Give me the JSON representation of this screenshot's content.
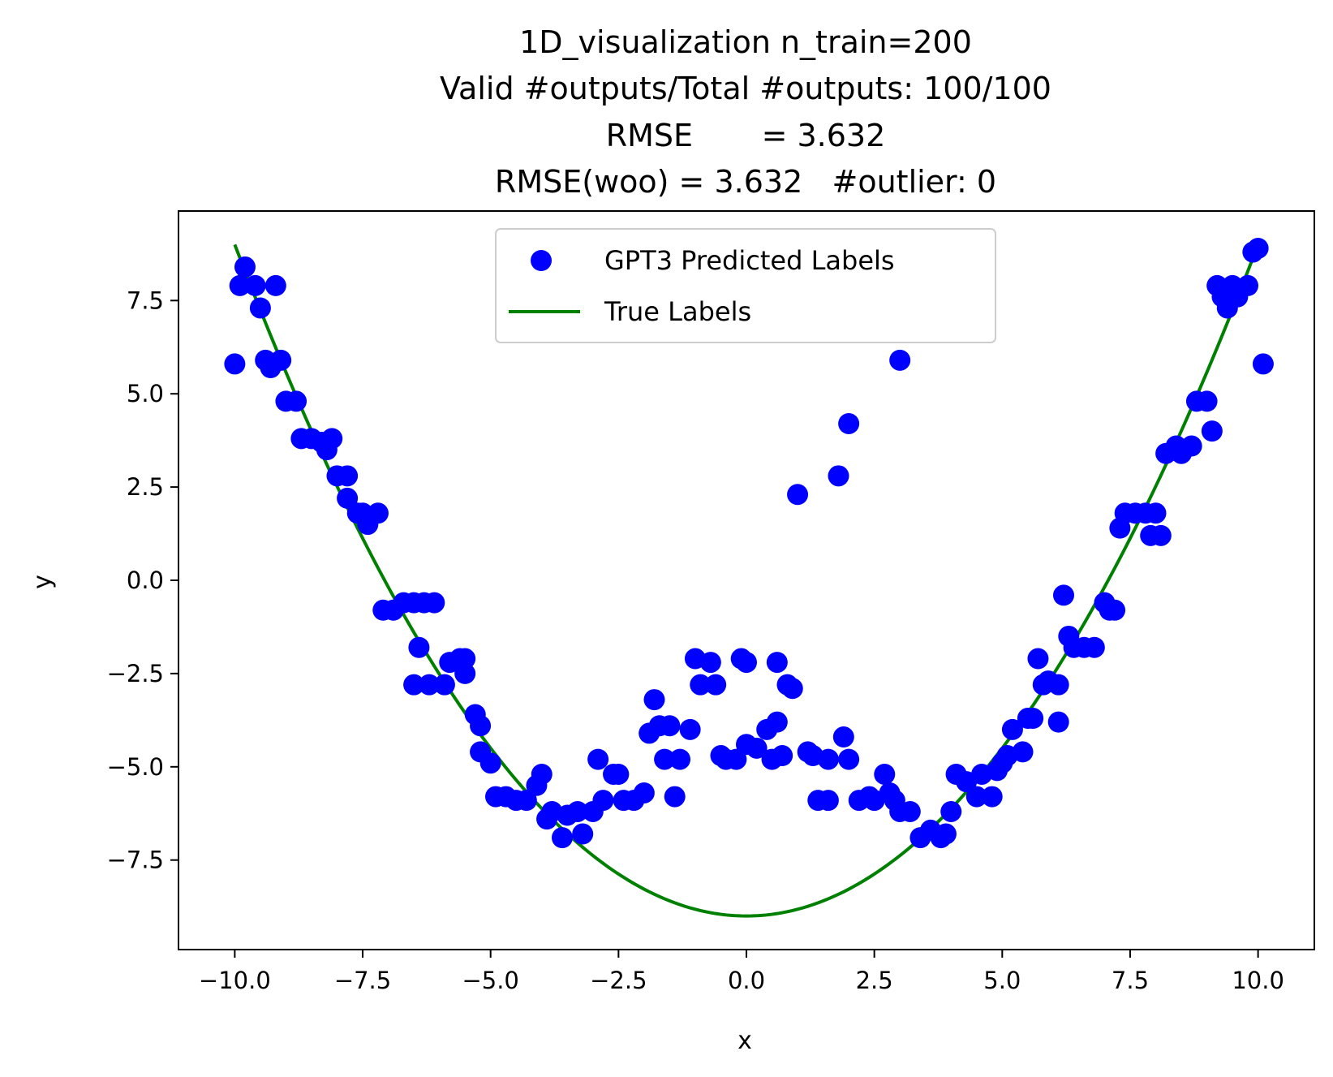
{
  "chart_data": {
    "type": "scatter",
    "title_lines": [
      "1D_visualization  n_train=200",
      "Valid #outputs/Total #outputs: 100/100",
      "RMSE       = 3.632",
      "RMSE(woo) = 3.632   #outlier: 0"
    ],
    "xlabel": "x",
    "ylabel": "y",
    "xlim": [
      -11.1,
      11.1
    ],
    "ylim": [
      -9.9,
      9.9
    ],
    "xticks": [
      -10,
      -7.5,
      -5,
      -2.5,
      0,
      2.5,
      5,
      7.5,
      10
    ],
    "xtick_labels": [
      "−10.0",
      "−7.5",
      "−5.0",
      "−2.5",
      "0.0",
      "2.5",
      "5.0",
      "7.5",
      "10.0"
    ],
    "yticks": [
      -7.5,
      -5,
      -2.5,
      0,
      2.5,
      5,
      7.5
    ],
    "ytick_labels": [
      "−7.5",
      "−5.0",
      "−2.5",
      "0.0",
      "2.5",
      "5.0",
      "7.5"
    ],
    "grid": false,
    "legend": {
      "placement": "top-center",
      "entries": [
        "GPT3 Predicted Labels",
        "True Labels"
      ]
    },
    "colors": {
      "predicted": "#0000ff",
      "true": "#008000"
    },
    "true_curve": {
      "name": "True Labels",
      "function": "y = 0.18 * x^2 - 9",
      "x_range": [
        -10,
        10
      ]
    },
    "series": [
      {
        "name": "GPT3 Predicted Labels",
        "points": [
          [
            -10.0,
            5.8
          ],
          [
            -9.9,
            7.9
          ],
          [
            -9.8,
            8.4
          ],
          [
            -9.6,
            7.9
          ],
          [
            -9.5,
            7.3
          ],
          [
            -9.4,
            5.9
          ],
          [
            -9.3,
            5.7
          ],
          [
            -9.2,
            7.9
          ],
          [
            -9.1,
            5.9
          ],
          [
            -9.0,
            4.8
          ],
          [
            -8.8,
            4.8
          ],
          [
            -8.7,
            3.8
          ],
          [
            -8.5,
            3.8
          ],
          [
            -8.3,
            3.7
          ],
          [
            -8.2,
            3.5
          ],
          [
            -8.1,
            3.8
          ],
          [
            -8.0,
            2.8
          ],
          [
            -7.8,
            2.8
          ],
          [
            -7.8,
            2.2
          ],
          [
            -7.6,
            1.8
          ],
          [
            -7.5,
            1.8
          ],
          [
            -7.4,
            1.5
          ],
          [
            -7.2,
            1.8
          ],
          [
            -7.1,
            -0.8
          ],
          [
            -6.9,
            -0.8
          ],
          [
            -6.7,
            -0.6
          ],
          [
            -6.5,
            -0.6
          ],
          [
            -6.3,
            -0.6
          ],
          [
            -6.1,
            -0.6
          ],
          [
            -6.4,
            -1.8
          ],
          [
            -6.5,
            -2.8
          ],
          [
            -6.2,
            -2.8
          ],
          [
            -5.9,
            -2.8
          ],
          [
            -5.8,
            -2.2
          ],
          [
            -5.6,
            -2.1
          ],
          [
            -5.5,
            -2.1
          ],
          [
            -5.5,
            -2.5
          ],
          [
            -5.3,
            -3.6
          ],
          [
            -5.2,
            -3.9
          ],
          [
            -5.2,
            -4.6
          ],
          [
            -5.0,
            -4.9
          ],
          [
            -4.9,
            -5.8
          ],
          [
            -4.7,
            -5.8
          ],
          [
            -4.5,
            -5.9
          ],
          [
            -4.3,
            -5.9
          ],
          [
            -4.1,
            -5.5
          ],
          [
            -4.0,
            -5.2
          ],
          [
            -3.9,
            -6.4
          ],
          [
            -3.8,
            -6.2
          ],
          [
            -3.6,
            -6.9
          ],
          [
            -3.5,
            -6.3
          ],
          [
            -3.3,
            -6.2
          ],
          [
            -3.2,
            -6.8
          ],
          [
            -3.0,
            -6.2
          ],
          [
            -2.9,
            -4.8
          ],
          [
            -2.8,
            -5.9
          ],
          [
            -2.6,
            -5.2
          ],
          [
            -2.5,
            -5.2
          ],
          [
            -2.4,
            -5.9
          ],
          [
            -2.2,
            -5.9
          ],
          [
            -2.0,
            -5.7
          ],
          [
            -1.9,
            -4.1
          ],
          [
            -1.8,
            -3.2
          ],
          [
            -1.7,
            -3.9
          ],
          [
            -1.6,
            -4.8
          ],
          [
            -1.5,
            -3.9
          ],
          [
            -1.4,
            -5.8
          ],
          [
            -1.3,
            -4.8
          ],
          [
            -1.1,
            -4.0
          ],
          [
            -1.0,
            -2.1
          ],
          [
            -0.9,
            -2.8
          ],
          [
            -0.7,
            -2.2
          ],
          [
            -0.6,
            -2.8
          ],
          [
            -0.5,
            -4.7
          ],
          [
            -0.4,
            -4.8
          ],
          [
            -0.2,
            -4.8
          ],
          [
            -0.1,
            -2.1
          ],
          [
            0.0,
            -2.2
          ],
          [
            0.0,
            -4.4
          ],
          [
            0.2,
            -4.5
          ],
          [
            0.4,
            -4.0
          ],
          [
            0.5,
            -4.8
          ],
          [
            0.6,
            -3.8
          ],
          [
            0.7,
            -4.7
          ],
          [
            0.6,
            -2.2
          ],
          [
            0.8,
            -2.8
          ],
          [
            0.9,
            -2.9
          ],
          [
            1.0,
            2.3
          ],
          [
            1.2,
            -4.6
          ],
          [
            1.3,
            -4.7
          ],
          [
            1.4,
            -5.9
          ],
          [
            1.6,
            -4.8
          ],
          [
            1.6,
            -5.9
          ],
          [
            1.8,
            2.8
          ],
          [
            1.9,
            -4.2
          ],
          [
            2.0,
            4.2
          ],
          [
            2.0,
            -4.8
          ],
          [
            2.2,
            -5.9
          ],
          [
            2.4,
            -5.8
          ],
          [
            2.5,
            -5.9
          ],
          [
            2.7,
            -5.2
          ],
          [
            2.8,
            -5.7
          ],
          [
            2.9,
            -5.9
          ],
          [
            3.0,
            5.9
          ],
          [
            3.0,
            -6.2
          ],
          [
            3.2,
            -6.2
          ],
          [
            3.4,
            -6.9
          ],
          [
            3.6,
            -6.7
          ],
          [
            3.8,
            -6.9
          ],
          [
            3.9,
            -6.8
          ],
          [
            4.0,
            -6.2
          ],
          [
            4.1,
            -5.2
          ],
          [
            4.3,
            -5.4
          ],
          [
            4.5,
            -5.8
          ],
          [
            4.6,
            -5.2
          ],
          [
            4.8,
            -5.8
          ],
          [
            4.9,
            -5.1
          ],
          [
            5.0,
            -4.9
          ],
          [
            5.1,
            -4.7
          ],
          [
            5.2,
            -4.0
          ],
          [
            5.4,
            -4.6
          ],
          [
            5.5,
            -3.7
          ],
          [
            5.6,
            -3.7
          ],
          [
            5.7,
            -2.1
          ],
          [
            5.8,
            -2.8
          ],
          [
            5.9,
            -2.7
          ],
          [
            6.1,
            -2.8
          ],
          [
            6.1,
            -3.8
          ],
          [
            6.2,
            -0.4
          ],
          [
            6.3,
            -1.5
          ],
          [
            6.4,
            -1.8
          ],
          [
            6.6,
            -1.8
          ],
          [
            6.8,
            -1.8
          ],
          [
            7.0,
            -0.6
          ],
          [
            7.1,
            -0.8
          ],
          [
            7.2,
            -0.8
          ],
          [
            7.3,
            1.4
          ],
          [
            7.4,
            1.8
          ],
          [
            7.6,
            1.8
          ],
          [
            7.8,
            1.8
          ],
          [
            7.9,
            1.2
          ],
          [
            8.0,
            1.8
          ],
          [
            8.1,
            1.2
          ],
          [
            8.2,
            3.4
          ],
          [
            8.4,
            3.6
          ],
          [
            8.5,
            3.4
          ],
          [
            8.7,
            3.6
          ],
          [
            8.8,
            4.8
          ],
          [
            9.0,
            4.8
          ],
          [
            9.1,
            4.0
          ],
          [
            9.2,
            7.9
          ],
          [
            9.3,
            7.6
          ],
          [
            9.4,
            7.3
          ],
          [
            9.5,
            7.9
          ],
          [
            9.6,
            7.6
          ],
          [
            9.8,
            7.9
          ],
          [
            9.9,
            8.8
          ],
          [
            10.0,
            8.9
          ],
          [
            10.1,
            5.8
          ]
        ]
      }
    ]
  }
}
